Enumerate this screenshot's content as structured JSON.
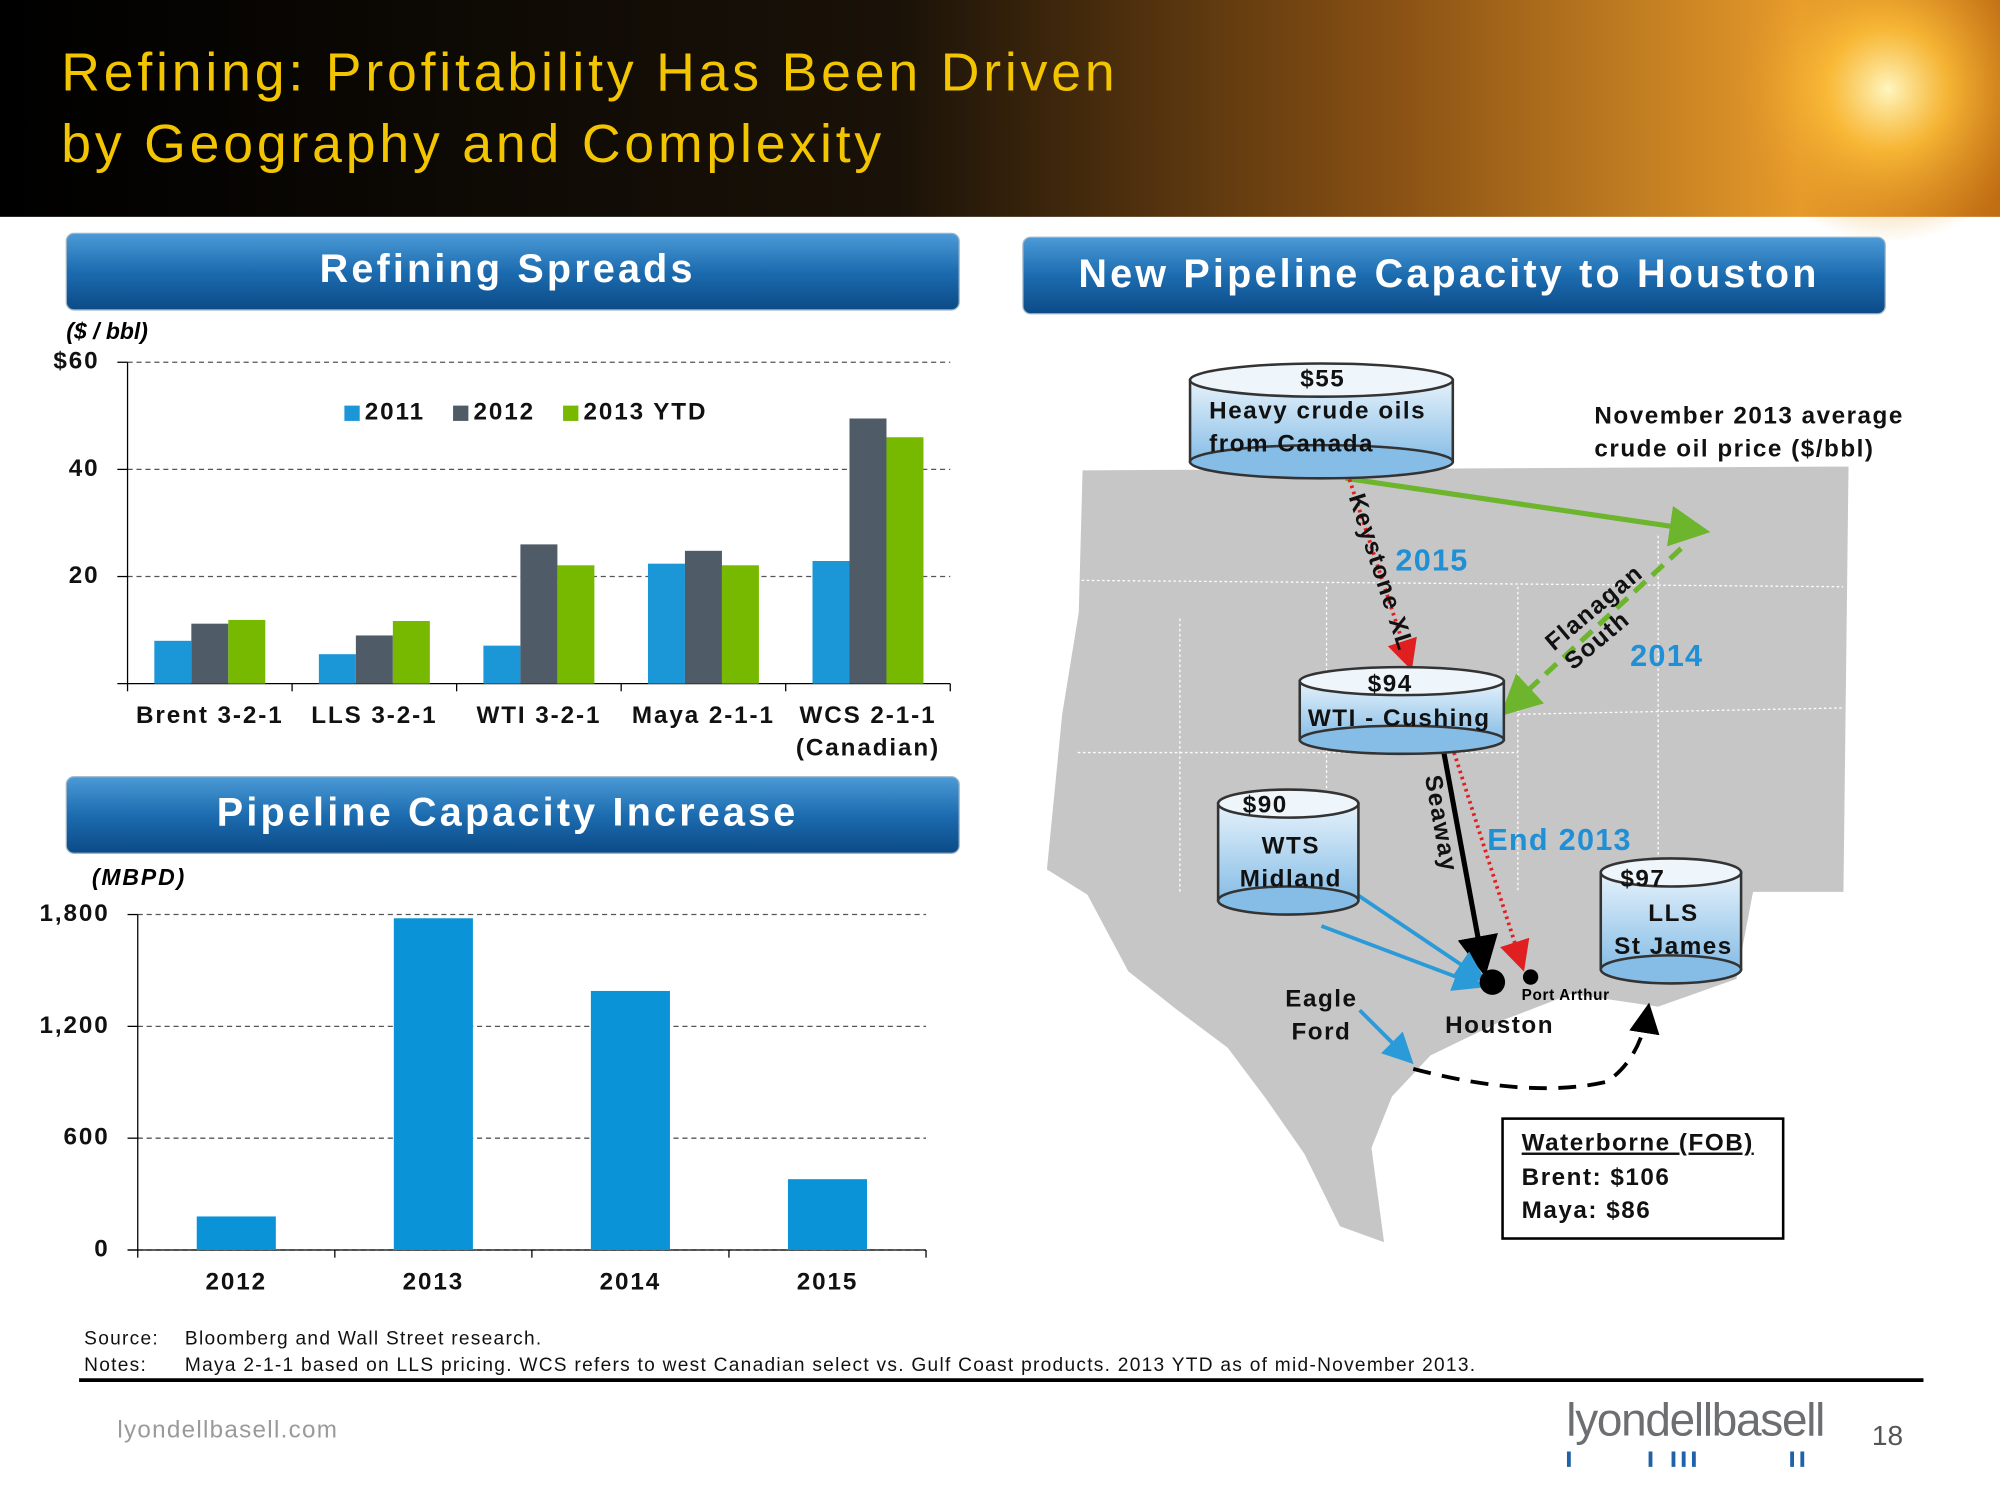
{
  "header": {
    "title": [
      "Refining: Profitability Has Been Driven",
      "by Geography and Complexity"
    ]
  },
  "chart_data": [
    {
      "type": "bar",
      "title": "Refining Spreads",
      "y_label": "($ / bbl)",
      "categories": [
        "Brent 3-2-1",
        "LLS 3-2-1",
        "WTI 3-2-1",
        "Maya 2-1-1",
        "WCS 2-1-1\n(Canadian)"
      ],
      "series": [
        {
          "name": "2011",
          "color": "#1b96d6",
          "values": [
            8,
            5.5,
            7.1,
            22.4,
            22.9
          ]
        },
        {
          "name": "2012",
          "color": "#4f5b67",
          "values": [
            11.2,
            9,
            26,
            24.8,
            49.5
          ]
        },
        {
          "name": "2013 YTD",
          "color": "#76b900",
          "values": [
            11.9,
            11.7,
            22.1,
            22.1,
            46
          ]
        }
      ],
      "ylim": [
        0,
        60
      ],
      "yticks": [
        20,
        40,
        {
          "value": 60,
          "label": "$60"
        }
      ],
      "grid": true,
      "legend": "top"
    },
    {
      "type": "bar",
      "title": "Pipeline Capacity Increase",
      "y_label": "(MBPD)",
      "categories": [
        "2012",
        "2013",
        "2014",
        "2015"
      ],
      "values": [
        180,
        1780,
        1390,
        380
      ],
      "color": "#0b93d7",
      "ylim": [
        0,
        1800
      ],
      "yticks": [
        0,
        600,
        {
          "value": 1200,
          "label": "1,200"
        },
        {
          "value": 1800,
          "label": "1,800"
        }
      ],
      "grid": true
    }
  ],
  "map": {
    "title": "New Pipeline Capacity to Houston",
    "canada": [
      "$55",
      "Heavy crude oils",
      "from Canada"
    ],
    "note": [
      "November 2013 average",
      "crude oil price ($/bbl)"
    ],
    "keystone": "Keystone XL",
    "keystone_year": "2015",
    "flanagan": [
      "Flanagan",
      "South"
    ],
    "flanagan_year": "2014",
    "cushing": [
      "$94",
      "WTI - Cushing"
    ],
    "midland": [
      "$90",
      "WTS",
      "Midland"
    ],
    "seaway": "Seaway",
    "seaway_year": "End 2013",
    "stjames": [
      "$97",
      "LLS",
      "St James"
    ],
    "eagle": [
      "Eagle",
      "Ford"
    ],
    "houston": "Houston",
    "port_arthur": "Port Arthur",
    "waterborne": [
      "Waterborne (FOB)",
      "Brent: $106",
      "Maya: $86"
    ]
  },
  "footnotes": {
    "source_label": "Source:",
    "source": "Bloomberg and Wall Street research.",
    "notes_label": "Notes:",
    "notes": "Maya 2-1-1 based on LLS pricing. WCS refers to west Canadian select vs. Gulf Coast products.  2013 YTD as of mid-November 2013."
  },
  "footer": {
    "website": "lyondellbasell.com",
    "logo": "lyondellbasell",
    "page": "18"
  }
}
